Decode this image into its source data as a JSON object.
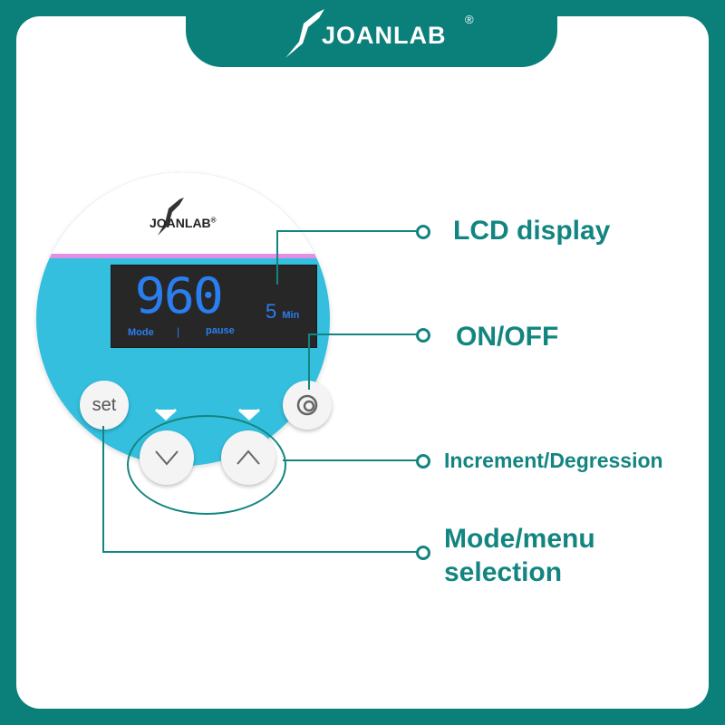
{
  "brand": {
    "name": "JOANLAB",
    "reg": "®"
  },
  "device": {
    "logo": "JOANLAB",
    "reg": "®",
    "lcd": {
      "value": "960",
      "time_value": "5",
      "time_unit": "Min",
      "mode_label": "Mode",
      "separator": "|",
      "status": "pause"
    },
    "buttons": {
      "set": "set"
    }
  },
  "callouts": {
    "lcd": "LCD display",
    "onoff": "ON/OFF",
    "increment": "Increment/Degression",
    "mode_line1": "Mode/menu",
    "mode_line2": "selection"
  },
  "colors": {
    "frame": "#0b7f7a",
    "device": "#34bfdf",
    "lcd_text": "#2a7ef0",
    "callout": "#138580"
  }
}
